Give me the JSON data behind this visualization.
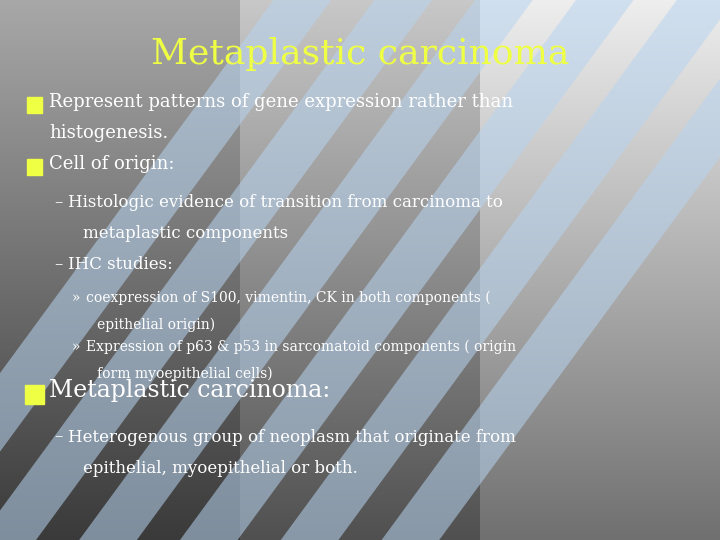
{
  "title": "Metaplastic carcinoma",
  "title_color": "#EEFF44",
  "title_fontsize": 26,
  "bg_color_top": "#A8C8EE",
  "bg_color_bottom": "#3A5070",
  "stripe_color": "#B8D4F0",
  "stripe_alpha": 0.55,
  "bullet_color": "#EEFF44",
  "text_color": "#FFFFFF",
  "bullet1_line1": "Represent patterns of gene expression rather than",
  "bullet1_line2": "histogenesis.",
  "bullet2": "Cell of origin:",
  "sub1_line1": "Histologic evidence of transition from carcinoma to",
  "sub1_line2": "metaplastic components",
  "sub2": "IHC studies:",
  "subsub1_line1": "coexpression of S100, vimentin, CK in both components (",
  "subsub1_line2": "epithelial origin)",
  "subsub2_line1": "Expression of p63 & p53 in sarcomatoid components ( origin",
  "subsub2_line2": "form myoepithelial cells)",
  "bullet3": "Metaplastic carcinoma:",
  "sub3_line1": "Heterogenous group of neoplasm that originate from",
  "sub3_line2": "epithelial, myoepithelial or both.",
  "figsize": [
    7.2,
    5.4
  ],
  "dpi": 100
}
